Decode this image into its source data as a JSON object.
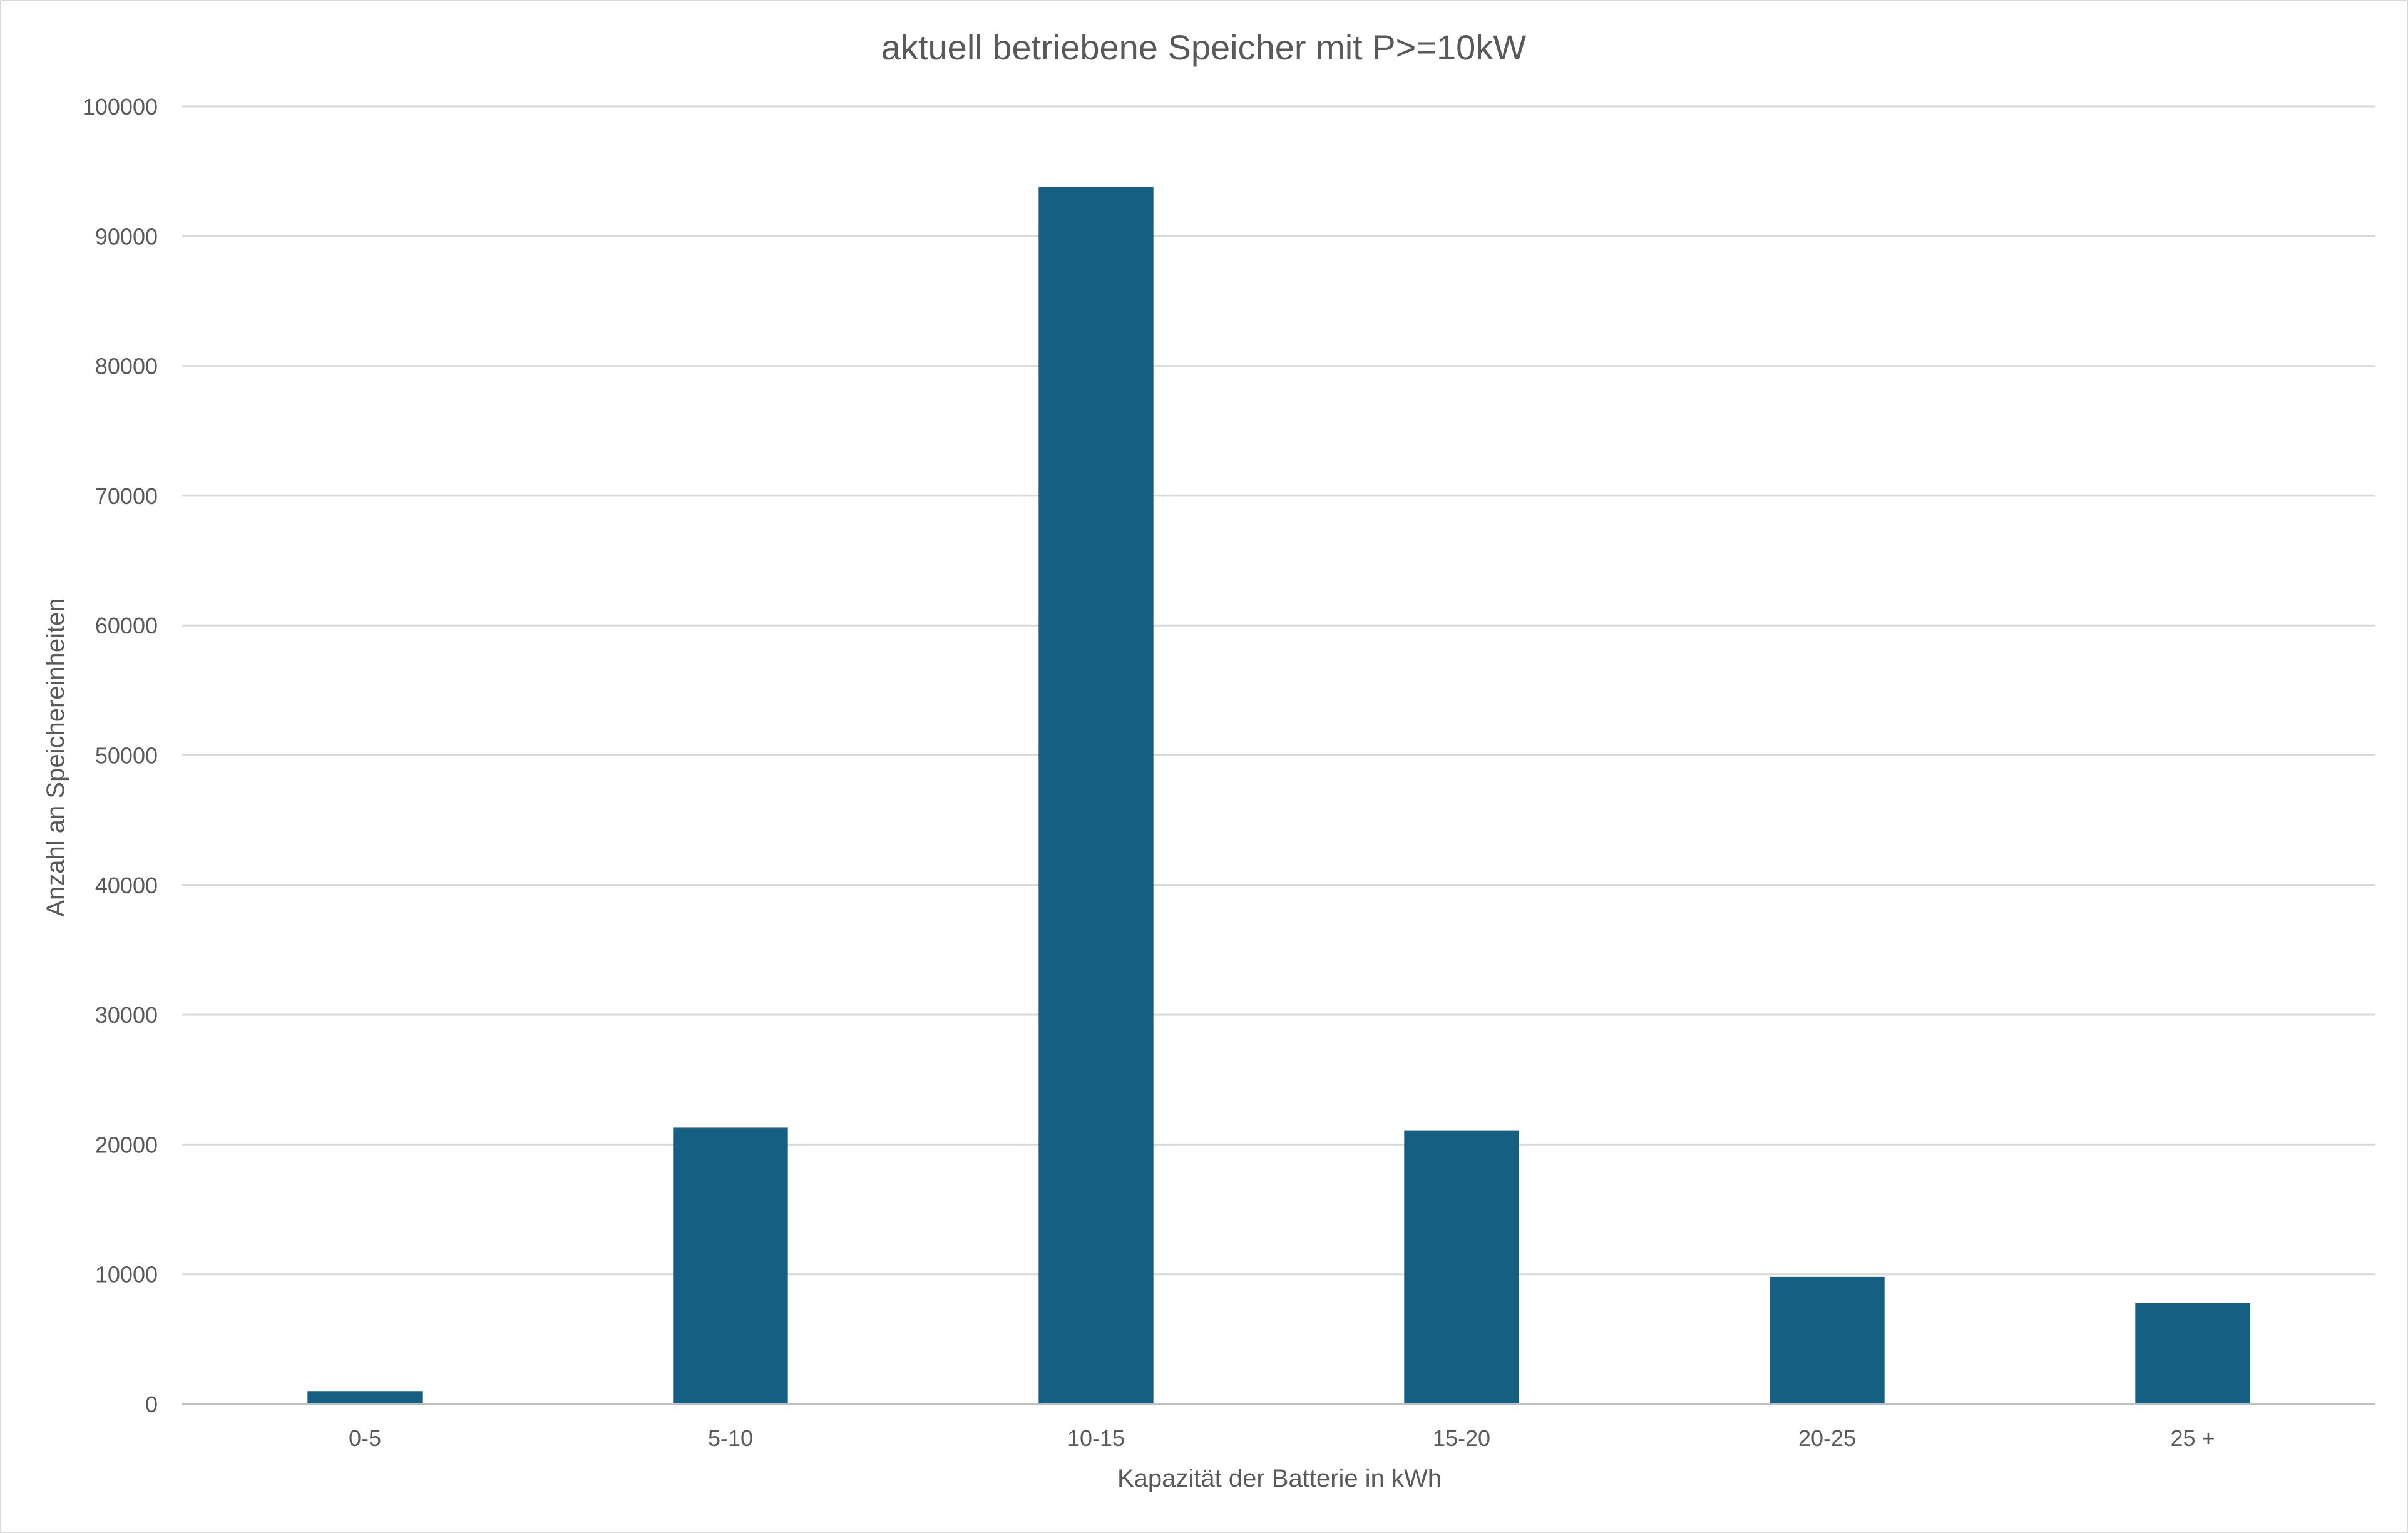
{
  "chart_data": {
    "type": "bar",
    "title": "aktuell betriebene Speicher mit P>=10kW",
    "xlabel": "Kapazität der Batterie in kWh",
    "ylabel": "Anzahl an Speichereinheiten",
    "categories": [
      "0-5",
      "5-10",
      "10-15",
      "15-20",
      "20-25",
      "25 +"
    ],
    "values": [
      1000,
      21300,
      93800,
      21100,
      9800,
      7800
    ],
    "ylim": [
      0,
      100000
    ],
    "yticks": [
      "0",
      "10000",
      "20000",
      "30000",
      "40000",
      "50000",
      "60000",
      "70000",
      "80000",
      "90000",
      "100000"
    ],
    "grid": true,
    "legend": "none",
    "bar_color": "#156082"
  }
}
